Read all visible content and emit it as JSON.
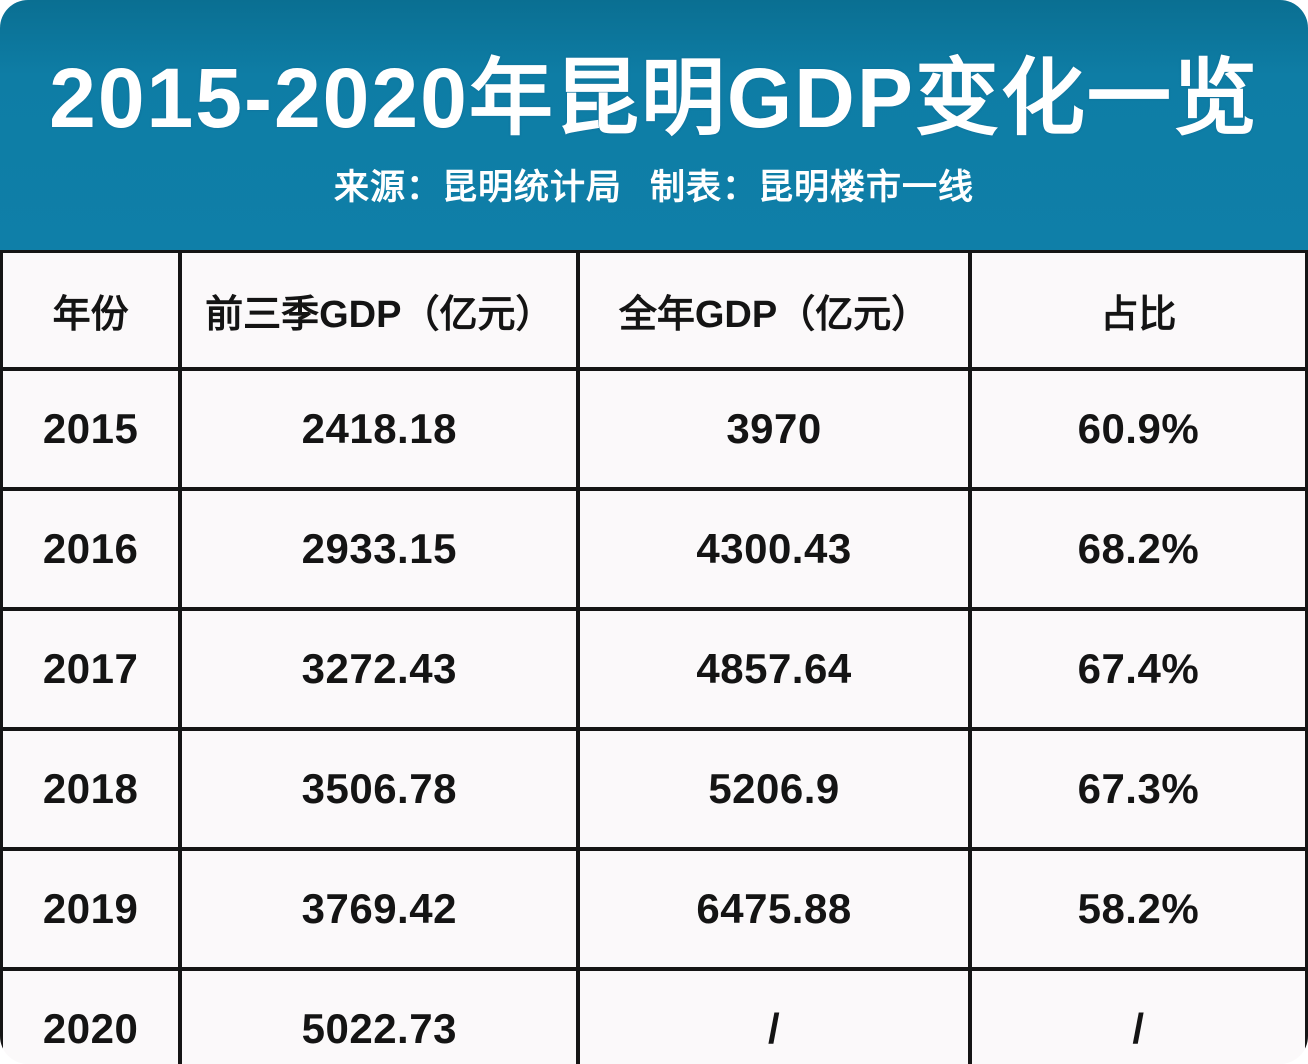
{
  "header": {
    "title": "2015-2020年昆明GDP变化一览",
    "source": "来源：昆明统计局",
    "credit": "制表：昆明楼市一线"
  },
  "colors": {
    "banner_bg": "#0f7fa8",
    "banner_text": "#ffffff",
    "table_border": "#151515",
    "cell_bg": "#fbf9fa",
    "cell_text": "#141414"
  },
  "chart_data": {
    "type": "table",
    "title": "2015-2020年昆明GDP变化一览",
    "subtitle": "来源：昆明统计局  制表：昆明楼市一线",
    "columns": [
      "年份",
      "前三季GDP（亿元）",
      "全年GDP（亿元）",
      "占比"
    ],
    "rows": [
      [
        "2015",
        "2418.18",
        "3970",
        "60.9%"
      ],
      [
        "2016",
        "2933.15",
        "4300.43",
        "68.2%"
      ],
      [
        "2017",
        "3272.43",
        "4857.64",
        "67.4%"
      ],
      [
        "2018",
        "3506.78",
        "5206.9",
        "67.3%"
      ],
      [
        "2019",
        "3769.42",
        "6475.88",
        "58.2%"
      ],
      [
        "2020",
        "5022.73",
        "/",
        "/"
      ]
    ]
  }
}
